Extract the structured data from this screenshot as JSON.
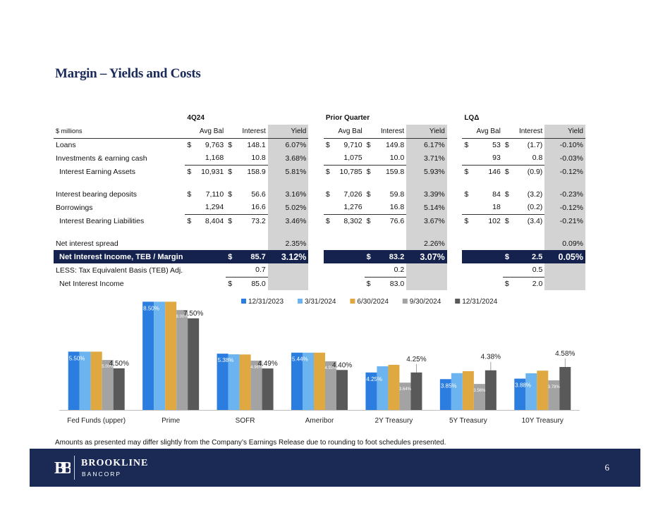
{
  "title": "Margin – Yields and Costs",
  "table": {
    "groups": [
      "4Q24",
      "Prior Quarter",
      "LQΔ"
    ],
    "units": "$ millions",
    "col_heads": [
      "Avg Bal",
      "Interest",
      "Yield"
    ],
    "rows": [
      {
        "label": "Loans",
        "g": [
          [
            "$",
            "9,763",
            "$",
            "148.1",
            "6.07%"
          ],
          [
            "$",
            "9,710",
            "$",
            "149.8",
            "6.17%"
          ],
          [
            "$",
            "53",
            "$",
            "(1.7)",
            "-0.10%"
          ]
        ]
      },
      {
        "label": "Investments & earning cash",
        "g": [
          [
            "",
            "1,168",
            "",
            "10.8",
            "3.68%"
          ],
          [
            "",
            "1,075",
            "",
            "10.0",
            "3.71%"
          ],
          [
            "",
            "93",
            "",
            "0.8",
            "-0.03%"
          ]
        ]
      },
      {
        "label": "Interest Earning Assets",
        "g": [
          [
            "$",
            "10,931",
            "$",
            "158.9",
            "5.81%"
          ],
          [
            "$",
            "10,785",
            "$",
            "159.8",
            "5.93%"
          ],
          [
            "$",
            "146",
            "$",
            "(0.9)",
            "-0.12%"
          ]
        ]
      },
      {
        "label": "Interest bearing deposits",
        "g": [
          [
            "$",
            "7,110",
            "$",
            "56.6",
            "3.16%"
          ],
          [
            "$",
            "7,026",
            "$",
            "59.8",
            "3.39%"
          ],
          [
            "$",
            "84",
            "$",
            "(3.2)",
            "-0.23%"
          ]
        ]
      },
      {
        "label": "Borrowings",
        "g": [
          [
            "",
            "1,294",
            "",
            "16.6",
            "5.02%"
          ],
          [
            "",
            "1,276",
            "",
            "16.8",
            "5.14%"
          ],
          [
            "",
            "18",
            "",
            "(0.2)",
            "-0.12%"
          ]
        ]
      },
      {
        "label": "Interest Bearing Liabilities",
        "g": [
          [
            "$",
            "8,404",
            "$",
            "73.2",
            "3.46%"
          ],
          [
            "$",
            "8,302",
            "$",
            "76.6",
            "3.67%"
          ],
          [
            "$",
            "102",
            "$",
            "(3.4)",
            "-0.21%"
          ]
        ]
      }
    ],
    "spread": {
      "label": "Net interest spread",
      "values": [
        "2.35%",
        "2.26%",
        "0.09%"
      ]
    },
    "nii_teb": {
      "label": "Net Interest Income, TEB / Margin",
      "g": [
        [
          "$",
          "85.7",
          "3.12%"
        ],
        [
          "$",
          "83.2",
          "3.07%"
        ],
        [
          "$",
          "2.5",
          "0.05%"
        ]
      ]
    },
    "less_adj": {
      "label": "LESS: Tax Equivalent Basis (TEB) Adj.",
      "values": [
        "0.7",
        "0.2",
        "0.5"
      ]
    },
    "nii": {
      "label": "Net Interest Income",
      "g": [
        [
          "$",
          "85.0"
        ],
        [
          "$",
          "83.0"
        ],
        [
          "$",
          "2.0"
        ]
      ]
    }
  },
  "chart_data": {
    "type": "bar",
    "legend_position": "top",
    "categories": [
      "Fed Funds (upper)",
      "Prime",
      "SOFR",
      "Ameribor",
      "2Y Treasury",
      "5Y Treasury",
      "10Y Treasury"
    ],
    "series": [
      {
        "name": "12/31/2023",
        "color": "#2b7de0",
        "values": [
          5.5,
          8.5,
          5.38,
          5.44,
          4.25,
          3.85,
          3.88
        ]
      },
      {
        "name": "3/31/2024",
        "color": "#6cb4ef",
        "values": [
          5.5,
          8.5,
          5.34,
          5.44,
          4.62,
          4.21,
          4.2
        ]
      },
      {
        "name": "6/30/2024",
        "color": "#dfa841",
        "values": [
          5.5,
          8.5,
          5.33,
          5.44,
          4.71,
          4.33,
          4.36
        ]
      },
      {
        "name": "9/30/2024",
        "color": "#a3a3a3",
        "values": [
          5.0,
          8.0,
          4.96,
          4.92,
          3.64,
          3.56,
          3.78
        ]
      },
      {
        "name": "12/31/2024",
        "color": "#595959",
        "values": [
          4.5,
          7.5,
          4.49,
          4.4,
          4.25,
          4.38,
          4.58
        ]
      }
    ],
    "data_labels": [
      {
        "category": 0,
        "series": 0,
        "text": "5.50%"
      },
      {
        "category": 0,
        "series": 3,
        "text": "5.00%"
      },
      {
        "category": 0,
        "series": 4,
        "text": "4.50%"
      },
      {
        "category": 1,
        "series": 0,
        "text": "8.50%"
      },
      {
        "category": 1,
        "series": 3,
        "text": "8.00%"
      },
      {
        "category": 1,
        "series": 4,
        "text": "7.50%"
      },
      {
        "category": 2,
        "series": 0,
        "text": "5.38%"
      },
      {
        "category": 2,
        "series": 3,
        "text": "4.96%"
      },
      {
        "category": 2,
        "series": 4,
        "text": "4.49%"
      },
      {
        "category": 3,
        "series": 0,
        "text": "5.44%"
      },
      {
        "category": 3,
        "series": 3,
        "text": "4.92%"
      },
      {
        "category": 3,
        "series": 4,
        "text": "4.40%"
      },
      {
        "category": 4,
        "series": 0,
        "text": "4.25%"
      },
      {
        "category": 4,
        "series": 3,
        "text": "3.64%"
      },
      {
        "category": 4,
        "series": 4,
        "text": "4.25%"
      },
      {
        "category": 5,
        "series": 0,
        "text": "3.85%"
      },
      {
        "category": 5,
        "series": 3,
        "text": "3.56%"
      },
      {
        "category": 5,
        "series": 4,
        "text": "4.38%"
      },
      {
        "category": 6,
        "series": 0,
        "text": "3.88%"
      },
      {
        "category": 6,
        "series": 3,
        "text": "3.78%"
      },
      {
        "category": 6,
        "series": 4,
        "text": "4.58%"
      }
    ],
    "ylim": [
      2.0,
      8.6
    ]
  },
  "note": "Amounts as presented may differ slightly from the Company’s Earnings Release due to rounding to foot schedules presented.",
  "footer": {
    "brand_line1": "BROOKLINE",
    "brand_line2": "BANCORP",
    "logo_text": "BB",
    "page_number": "6"
  }
}
